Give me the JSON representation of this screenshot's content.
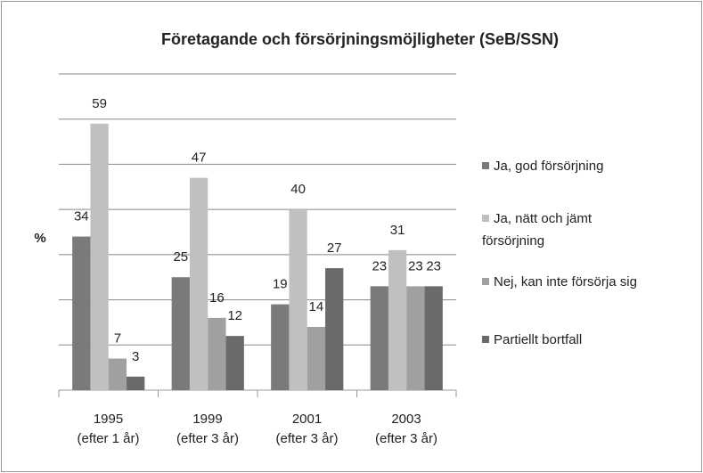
{
  "chart_data": {
    "type": "bar",
    "title": "Företagande och  försörjningsmöjligheter (SeB/SSN)",
    "y_label": "%",
    "categories": [
      "1995\n(efter 1 år)",
      "1999\n(efter 3 år)",
      "2001\n(efter 3 år)",
      "2003\n(efter 3 år)"
    ],
    "series": [
      {
        "name": "Ja, god försörjning",
        "color": "#7a7a7a",
        "values": [
          34,
          25,
          19,
          23
        ]
      },
      {
        "name": "Ja, nätt och jämt försörjning",
        "color": "#c0c0c0",
        "values": [
          59,
          47,
          40,
          31
        ]
      },
      {
        "name": "Nej, kan inte försörja sig",
        "color": "#a0a0a0",
        "values": [
          7,
          16,
          14,
          23
        ]
      },
      {
        "name": "Partiellt bortfall",
        "color": "#6a6a6a",
        "values": [
          3,
          12,
          27,
          23
        ]
      }
    ],
    "ylim": [
      0,
      70
    ],
    "yticks": [
      0,
      10,
      20,
      30,
      40,
      50,
      60,
      70
    ],
    "grid": true,
    "legend": "right"
  }
}
